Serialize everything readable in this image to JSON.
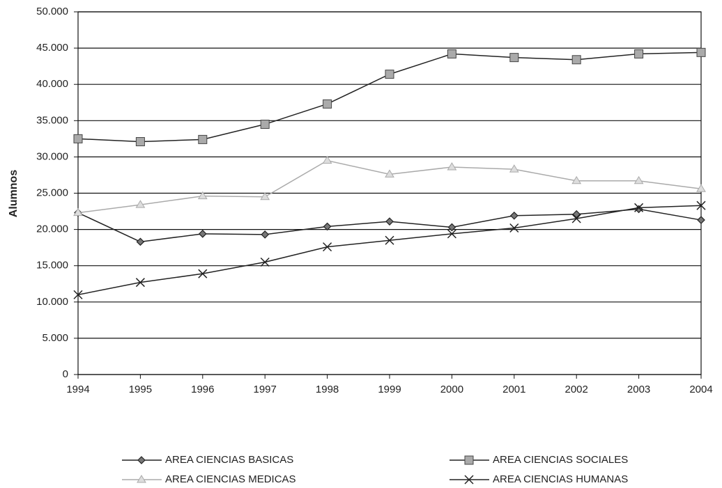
{
  "chart_data": {
    "type": "line",
    "y_label": "Alumnos",
    "x": [
      1994,
      1995,
      1996,
      1997,
      1998,
      1999,
      2000,
      2001,
      2002,
      2003,
      2004
    ],
    "xlim": [
      1994,
      2004
    ],
    "xticks": [
      1994,
      1995,
      1996,
      1997,
      1998,
      1999,
      2000,
      2001,
      2002,
      2003,
      2004
    ],
    "ylim": [
      0,
      50000
    ],
    "yticks": [
      0,
      {
        "value": 5000,
        "label": "5.000"
      },
      {
        "value": 10000,
        "label": "10.000"
      },
      {
        "value": 15000,
        "label": "15.000"
      },
      {
        "value": 20000,
        "label": "20.000"
      },
      {
        "value": 25000,
        "label": "25.000"
      },
      {
        "value": 30000,
        "label": "30.000"
      },
      {
        "value": 35000,
        "label": "35.000"
      },
      {
        "value": 40000,
        "label": "40.000"
      },
      {
        "value": 45000,
        "label": "45.000"
      },
      {
        "value": 50000,
        "label": "50.000"
      }
    ],
    "grid": true,
    "legend": "bottom",
    "series": [
      {
        "name": "AREA CIENCIAS BASICAS",
        "color": "#222222",
        "marker": "diamond",
        "values": [
          22300,
          18300,
          19400,
          19300,
          20400,
          21100,
          20300,
          21900,
          22100,
          22800,
          21300
        ]
      },
      {
        "name": "AREA CIENCIAS SOCIALES",
        "color": "#222222",
        "marker": "square",
        "values": [
          32500,
          32100,
          32400,
          34500,
          37300,
          41400,
          44200,
          43700,
          43400,
          44200,
          44400
        ]
      },
      {
        "name": "AREA CIENCIAS MEDICAS",
        "color": "#aaaaaa",
        "marker": "triangle",
        "values": [
          22300,
          23400,
          24600,
          24500,
          29500,
          27600,
          28600,
          28300,
          26700,
          26700,
          25600
        ]
      },
      {
        "name": "AREA CIENCIAS HUMANAS",
        "color": "#222222",
        "marker": "x",
        "values": [
          11000,
          12700,
          13900,
          15500,
          17600,
          18500,
          19400,
          20200,
          21500,
          23000,
          23300
        ]
      }
    ]
  }
}
